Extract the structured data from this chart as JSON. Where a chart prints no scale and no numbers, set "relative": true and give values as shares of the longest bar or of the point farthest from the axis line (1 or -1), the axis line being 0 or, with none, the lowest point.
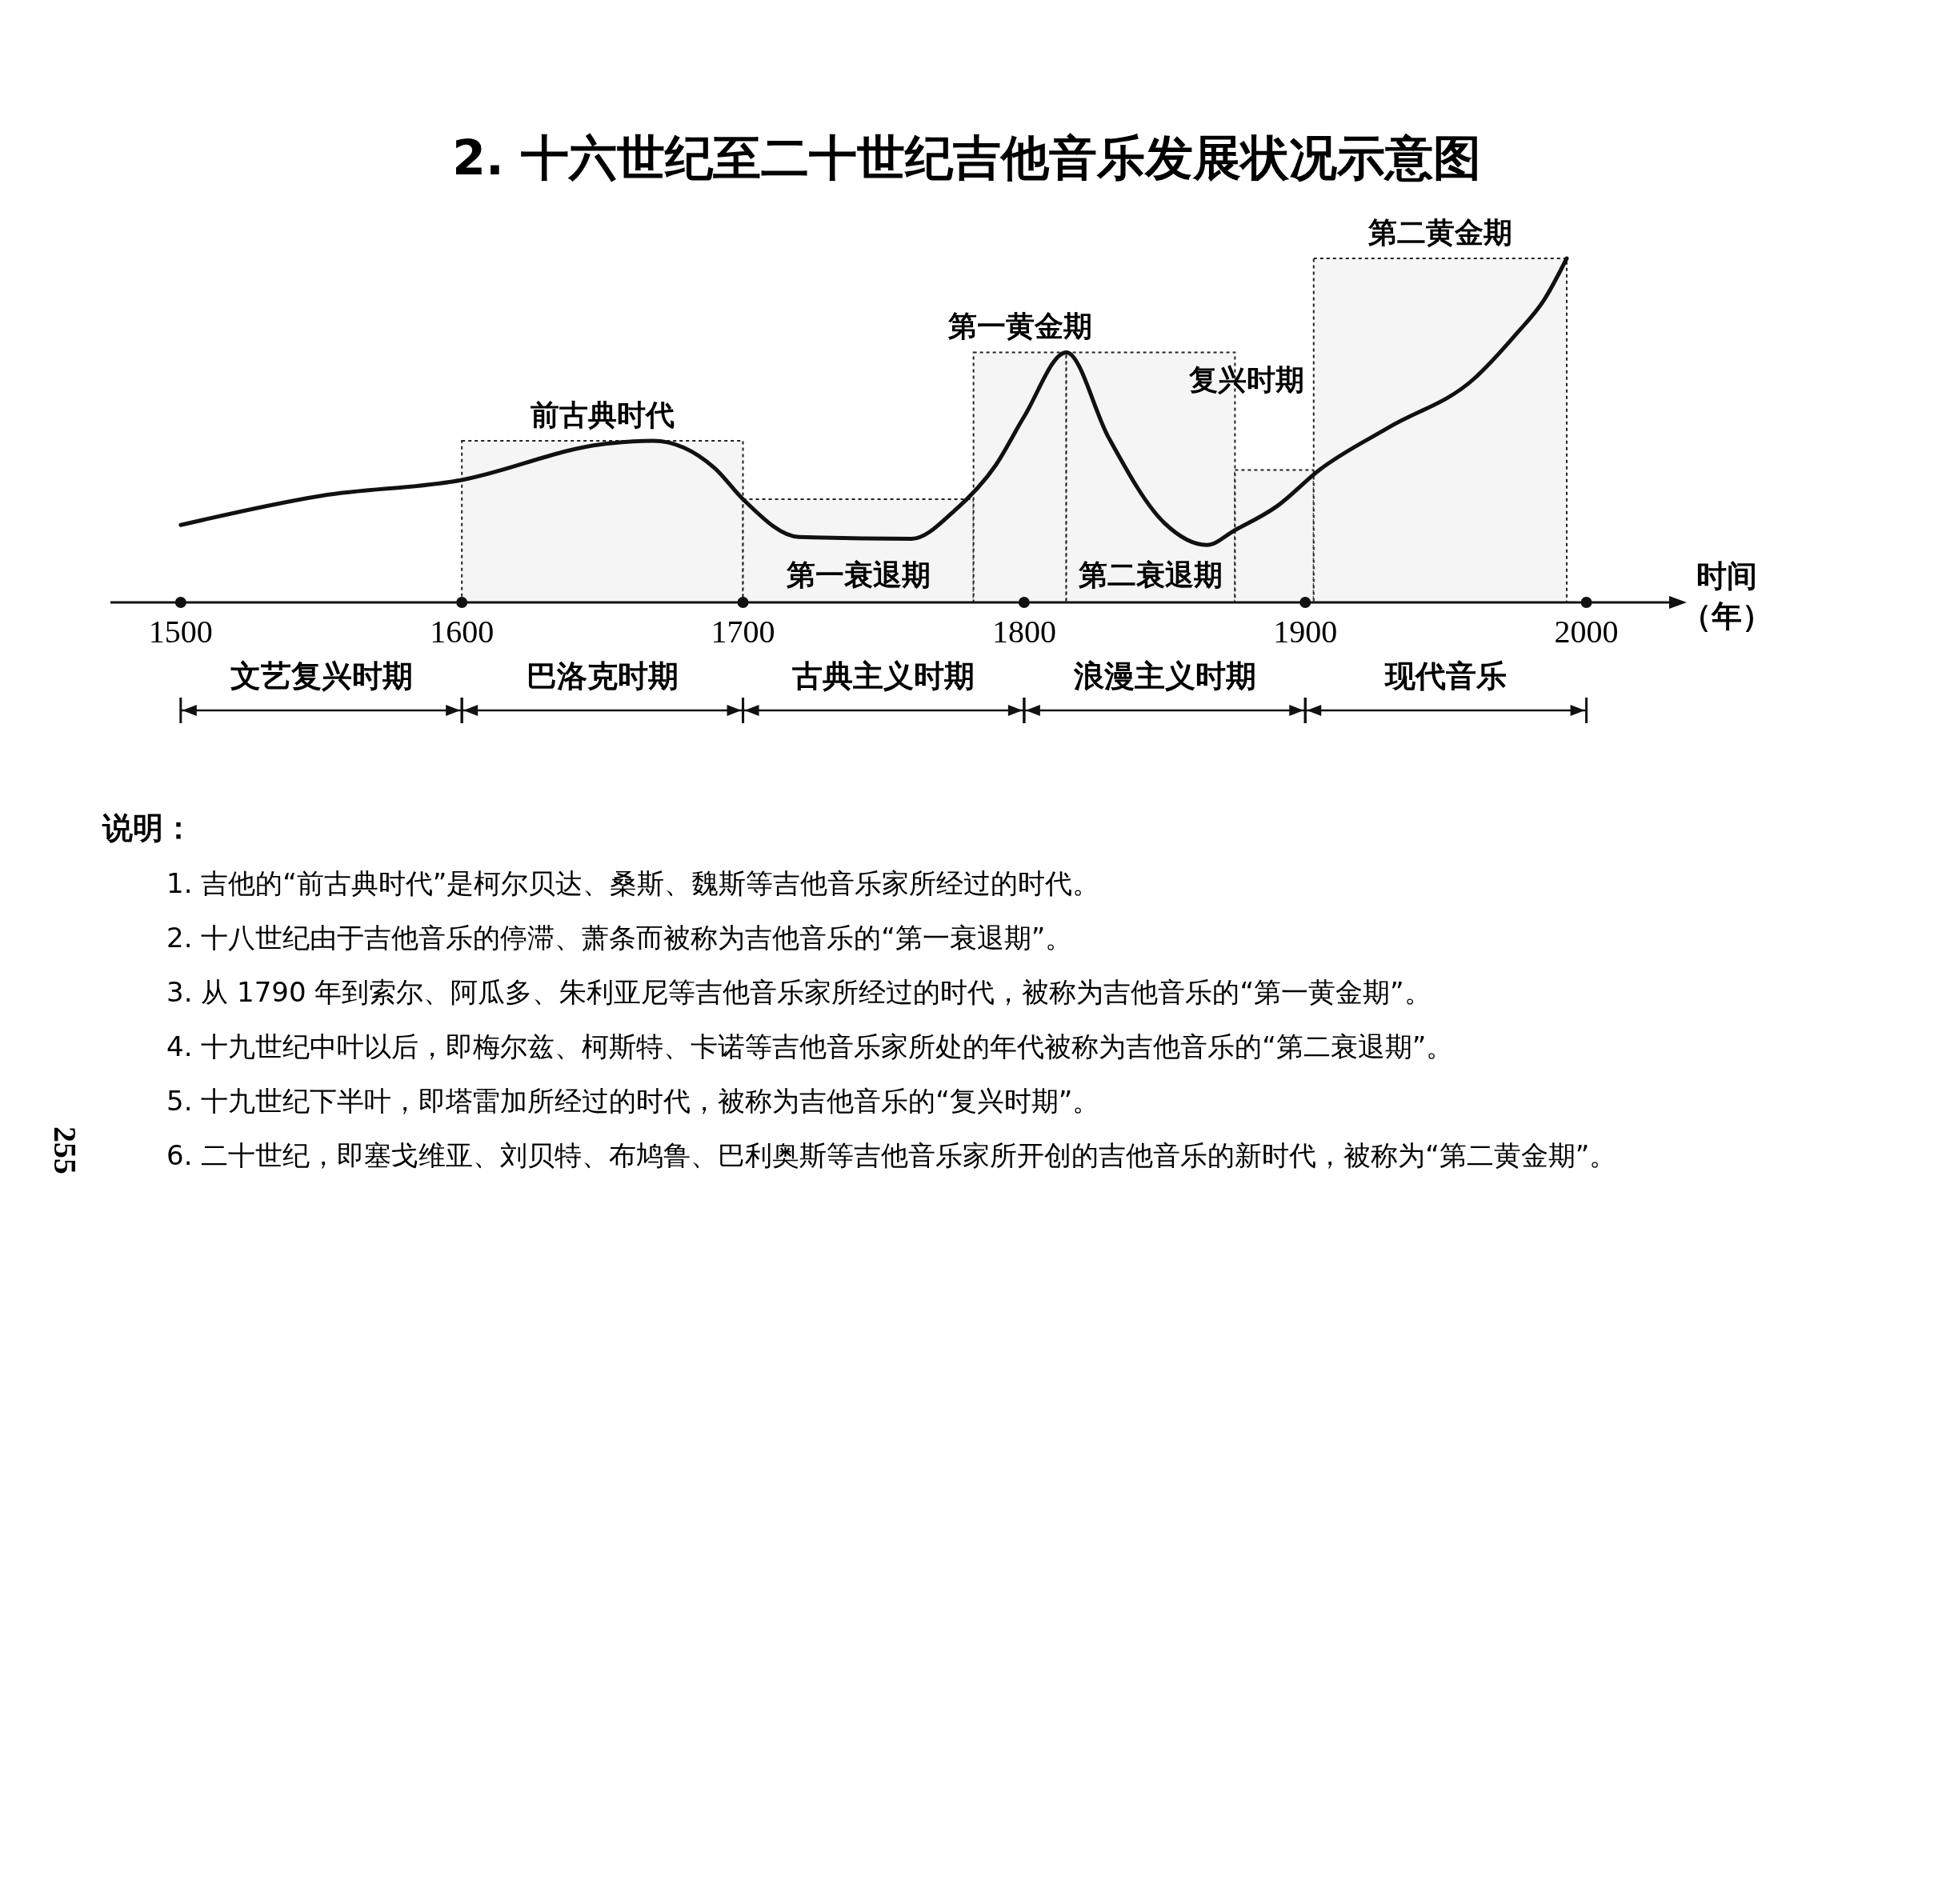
{
  "chart_data": {
    "type": "line",
    "relative": true,
    "title": "2. 十六世纪至二十世纪吉他音乐发展状况示意图",
    "xlabel": "时间（年）",
    "xlim": [
      1475,
      2030
    ],
    "xticks": [
      1500,
      1600,
      1700,
      1800,
      1900,
      2000
    ],
    "grid": false,
    "legend": false,
    "marker": "none",
    "line_style": "solid",
    "series": [
      {
        "color": "#111111",
        "x": [
          1500,
          1550,
          1600,
          1650,
          1668,
          1690,
          1700,
          1720,
          1760,
          1775,
          1790,
          1800,
          1815,
          1830,
          1850,
          1865,
          1875,
          1890,
          1905,
          1930,
          1960,
          1975,
          1985,
          1993
        ],
        "values": [
          0.225,
          0.31,
          0.356,
          0.46,
          0.47,
          0.39,
          0.3,
          0.19,
          0.185,
          0.265,
          0.4,
          0.54,
          0.727,
          0.48,
          0.23,
          0.167,
          0.21,
          0.28,
          0.385,
          0.51,
          0.65,
          0.78,
          0.88,
          1
        ]
      }
    ],
    "bands": [
      {
        "axis": "x",
        "from": 1600,
        "to": 1700,
        "label": "前古典时代",
        "color": "#f5f5f5"
      },
      {
        "axis": "x",
        "from": 1700,
        "to": 1782,
        "label": "第一衰退期",
        "color": "#f5f5f5"
      },
      {
        "axis": "x",
        "from": 1782,
        "to": 1815,
        "label": "第一黄金期",
        "color": "#f5f5f5"
      },
      {
        "axis": "x",
        "from": 1815,
        "to": 1875,
        "label": "第二衰退期",
        "color": "#f5f5f5"
      },
      {
        "axis": "x",
        "from": 1875,
        "to": 1903,
        "label": "复兴时期",
        "color": "#f5f5f5"
      },
      {
        "axis": "x",
        "from": 1903,
        "to": 1993,
        "label": "第二黄金期",
        "color": "#f5f5f5"
      }
    ],
    "annotations": [
      "文艺复兴时期",
      "巴洛克时期",
      "古典主义时期",
      "浪漫主义时期",
      "现代音乐",
      "说明：",
      "1. 吉他的“前古典时代”是柯尔贝达、桑斯、魏斯等吉他音乐家所经过的时代。",
      "2. 十八世纪由于吉他音乐的停滞、萧条而被称为吉他音乐的“第一衰退期”。",
      "3. 从 1790 年到索尔、阿瓜多、朱利亚尼等吉他音乐家所经过的时代，被称为吉他音乐的“第一黄金期”。",
      "4. 十九世纪中叶以后，即梅尔兹、柯斯特、卡诺等吉他音乐家所处的年代被称为吉他音乐的“第二衰退期”。",
      "5. 十九世纪下半叶，即塔雷加所经过的时代，被称为吉他音乐的“复兴时期”。",
      "6. 二十世纪，即塞戈维亚、刘贝特、布鸠鲁、巴利奥斯等吉他音乐家所开创的吉他音乐的新时代，被称为“第二黄金期”。",
      "255"
    ]
  }
}
